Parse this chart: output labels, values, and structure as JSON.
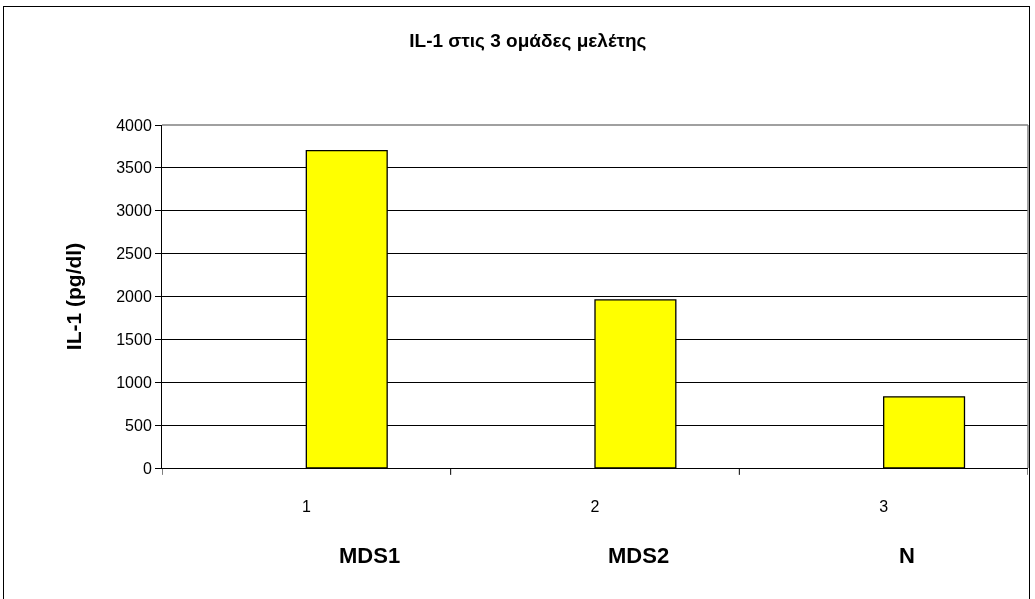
{
  "chart_data": {
    "type": "bar",
    "title": "IL-1 στις 3 ομάδες μελέτης",
    "ylabel": "IL-1 (pg/dl)",
    "categories": [
      "1",
      "2",
      "3"
    ],
    "values": [
      3700,
      1960,
      830
    ],
    "color": "#ffff00",
    "ylim": [
      0,
      4000
    ],
    "yticks": [
      0,
      500,
      1000,
      1500,
      2000,
      2500,
      3000,
      3500,
      4000
    ],
    "grid": "y",
    "annotations": [
      "MDS1",
      "MDS2",
      "N"
    ]
  }
}
